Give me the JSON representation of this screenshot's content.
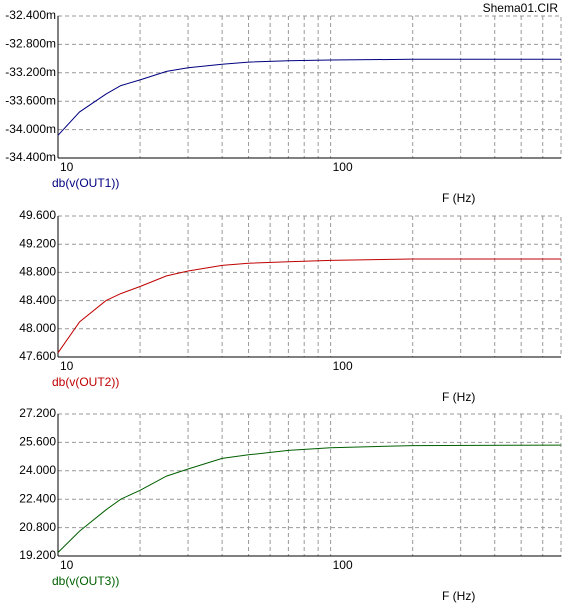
{
  "file_name": "Shema01.CIR",
  "chart_data": [
    {
      "type": "line",
      "xlabel": "F (Hz)",
      "log_x": true,
      "grid": true,
      "x": [
        10,
        12,
        15,
        17,
        20,
        25,
        30,
        40,
        50,
        70,
        100,
        200,
        700
      ],
      "series": [
        {
          "name": "db(v(OUT1))",
          "color": "#000080",
          "values": [
            -34.08,
            -33.75,
            -33.5,
            -33.38,
            -33.3,
            -33.18,
            -33.13,
            -33.08,
            -33.05,
            -33.03,
            -33.02,
            -33.01,
            -33.01
          ]
        }
      ],
      "xlim": [
        10,
        700
      ],
      "xticks": [
        10,
        100
      ],
      "xminor_ticks": [
        20,
        30,
        40,
        50,
        60,
        70,
        80,
        90,
        200,
        300,
        400,
        500,
        600
      ],
      "ylim": [
        -34.4,
        -32.4
      ],
      "yticks": [
        {
          "value": -32.4,
          "label": "-32.400m"
        },
        {
          "value": -32.8,
          "label": "-32.800m"
        },
        {
          "value": -33.2,
          "label": "-33.200m"
        },
        {
          "value": -33.6,
          "label": "-33.600m"
        },
        {
          "value": -34.0,
          "label": "-34.000m"
        },
        {
          "value": -34.4,
          "label": "-34.400m"
        }
      ]
    },
    {
      "type": "line",
      "xlabel": "F (Hz)",
      "log_x": true,
      "grid": true,
      "x": [
        10,
        12,
        15,
        17,
        20,
        25,
        30,
        40,
        50,
        70,
        100,
        200,
        700
      ],
      "series": [
        {
          "name": "db(v(OUT2))",
          "color": "#c00000",
          "values": [
            47.66,
            48.1,
            48.4,
            48.5,
            48.6,
            48.75,
            48.82,
            48.9,
            48.93,
            48.95,
            48.97,
            48.99,
            48.99
          ]
        }
      ],
      "xlim": [
        10,
        700
      ],
      "xticks": [
        10,
        100
      ],
      "xminor_ticks": [
        20,
        30,
        40,
        50,
        60,
        70,
        80,
        90,
        200,
        300,
        400,
        500,
        600
      ],
      "ylim": [
        47.6,
        49.6
      ],
      "yticks": [
        {
          "value": 49.6,
          "label": "49.600"
        },
        {
          "value": 49.2,
          "label": "49.200"
        },
        {
          "value": 48.8,
          "label": "48.800"
        },
        {
          "value": 48.4,
          "label": "48.400"
        },
        {
          "value": 48.0,
          "label": "48.000"
        },
        {
          "value": 47.6,
          "label": "47.600"
        }
      ]
    },
    {
      "type": "line",
      "xlabel": "F (Hz)",
      "log_x": true,
      "grid": true,
      "x": [
        10,
        12,
        15,
        17,
        20,
        25,
        30,
        40,
        50,
        70,
        100,
        200,
        700
      ],
      "series": [
        {
          "name": "db(v(OUT3))",
          "color": "#006000",
          "values": [
            19.4,
            20.6,
            21.8,
            22.4,
            22.9,
            23.7,
            24.1,
            24.7,
            24.9,
            25.15,
            25.3,
            25.42,
            25.45
          ]
        }
      ],
      "xlim": [
        10,
        700
      ],
      "xticks": [
        10,
        100
      ],
      "xminor_ticks": [
        20,
        30,
        40,
        50,
        60,
        70,
        80,
        90,
        200,
        300,
        400,
        500,
        600
      ],
      "ylim": [
        19.2,
        27.2
      ],
      "yticks": [
        {
          "value": 27.2,
          "label": "27.200"
        },
        {
          "value": 25.6,
          "label": "25.600"
        },
        {
          "value": 24.0,
          "label": "24.000"
        },
        {
          "value": 22.4,
          "label": "22.400"
        },
        {
          "value": 20.8,
          "label": "20.800"
        },
        {
          "value": 19.2,
          "label": "19.200"
        }
      ]
    }
  ]
}
